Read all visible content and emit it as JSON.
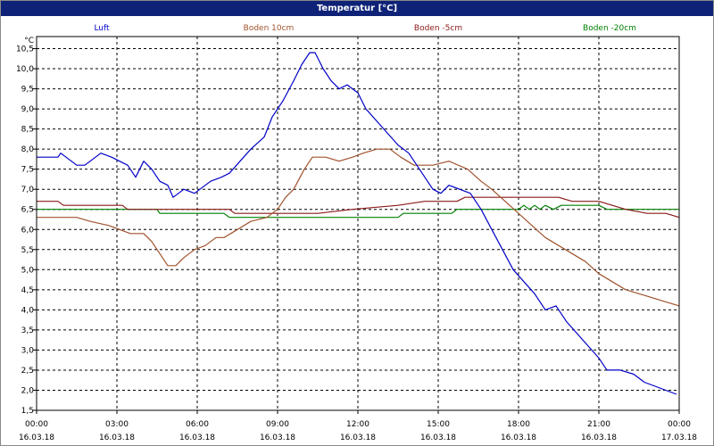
{
  "chart_data": {
    "type": "line",
    "title": "Temperatur [°C]",
    "ylabel": "°C",
    "ylim": [
      1.5,
      10.8
    ],
    "xlim": [
      0,
      24
    ],
    "grid": true,
    "legend_position": "top",
    "x_ticks": [
      {
        "x": 0,
        "time": "00:00",
        "date": "16.03.18"
      },
      {
        "x": 3,
        "time": "03:00",
        "date": "16.03.18"
      },
      {
        "x": 6,
        "time": "06:00",
        "date": "16.03.18"
      },
      {
        "x": 9,
        "time": "09:00",
        "date": "16.03.18"
      },
      {
        "x": 12,
        "time": "12:00",
        "date": "16.03.18"
      },
      {
        "x": 15,
        "time": "15:00",
        "date": "16.03.18"
      },
      {
        "x": 18,
        "time": "18:00",
        "date": "16.03.18"
      },
      {
        "x": 21,
        "time": "21:00",
        "date": "16.03.18"
      },
      {
        "x": 24,
        "time": "00:00",
        "date": "17.03.18"
      }
    ],
    "y_ticks": [
      {
        "v": 10.5,
        "label": "10,5"
      },
      {
        "v": 10.0,
        "label": "10,0"
      },
      {
        "v": 9.5,
        "label": "9,5"
      },
      {
        "v": 9.0,
        "label": "9,0"
      },
      {
        "v": 8.5,
        "label": "8,5"
      },
      {
        "v": 8.0,
        "label": "8,0"
      },
      {
        "v": 7.5,
        "label": "7,5"
      },
      {
        "v": 7.0,
        "label": "7,0"
      },
      {
        "v": 6.5,
        "label": "6,5"
      },
      {
        "v": 6.0,
        "label": "6,0"
      },
      {
        "v": 5.5,
        "label": "5,5"
      },
      {
        "v": 5.0,
        "label": "5,0"
      },
      {
        "v": 4.5,
        "label": "4,5"
      },
      {
        "v": 4.0,
        "label": "4,0"
      },
      {
        "v": 3.5,
        "label": "3,5"
      },
      {
        "v": 3.0,
        "label": "3,0"
      },
      {
        "v": 2.5,
        "label": "2,5"
      },
      {
        "v": 2.0,
        "label": "2,0"
      },
      {
        "v": 1.5,
        "label": "1,5"
      }
    ],
    "series": [
      {
        "name": "Luft",
        "color": "#0000c8",
        "points": [
          [
            0,
            7.8
          ],
          [
            0.8,
            7.8
          ],
          [
            0.9,
            7.9
          ],
          [
            1.1,
            7.8
          ],
          [
            1.5,
            7.6
          ],
          [
            1.8,
            7.6
          ],
          [
            2.2,
            7.8
          ],
          [
            2.4,
            7.9
          ],
          [
            2.8,
            7.8
          ],
          [
            3.1,
            7.7
          ],
          [
            3.4,
            7.6
          ],
          [
            3.7,
            7.3
          ],
          [
            4.0,
            7.7
          ],
          [
            4.3,
            7.5
          ],
          [
            4.6,
            7.2
          ],
          [
            4.9,
            7.1
          ],
          [
            5.1,
            6.8
          ],
          [
            5.5,
            7.0
          ],
          [
            5.9,
            6.9
          ],
          [
            6.1,
            7.0
          ],
          [
            6.5,
            7.2
          ],
          [
            6.9,
            7.3
          ],
          [
            7.2,
            7.4
          ],
          [
            7.6,
            7.7
          ],
          [
            8.0,
            8.0
          ],
          [
            8.5,
            8.3
          ],
          [
            8.8,
            8.8
          ],
          [
            9.2,
            9.2
          ],
          [
            9.6,
            9.7
          ],
          [
            9.9,
            10.1
          ],
          [
            10.2,
            10.4
          ],
          [
            10.4,
            10.4
          ],
          [
            10.7,
            10.0
          ],
          [
            11.0,
            9.7
          ],
          [
            11.3,
            9.5
          ],
          [
            11.6,
            9.6
          ],
          [
            12.0,
            9.4
          ],
          [
            12.3,
            9.0
          ],
          [
            12.7,
            8.7
          ],
          [
            13.1,
            8.4
          ],
          [
            13.5,
            8.1
          ],
          [
            13.9,
            7.9
          ],
          [
            14.2,
            7.6
          ],
          [
            14.5,
            7.3
          ],
          [
            14.8,
            7.0
          ],
          [
            15.1,
            6.9
          ],
          [
            15.4,
            7.1
          ],
          [
            15.8,
            7.0
          ],
          [
            16.2,
            6.9
          ],
          [
            16.6,
            6.5
          ],
          [
            17.0,
            6.0
          ],
          [
            17.4,
            5.5
          ],
          [
            17.8,
            5.0
          ],
          [
            18.2,
            4.7
          ],
          [
            18.6,
            4.4
          ],
          [
            19.0,
            4.0
          ],
          [
            19.4,
            4.1
          ],
          [
            19.8,
            3.7
          ],
          [
            20.2,
            3.4
          ],
          [
            20.6,
            3.1
          ],
          [
            21.0,
            2.8
          ],
          [
            21.3,
            2.5
          ],
          [
            21.8,
            2.5
          ],
          [
            22.3,
            2.4
          ],
          [
            22.7,
            2.2
          ],
          [
            23.1,
            2.1
          ],
          [
            23.5,
            2.0
          ],
          [
            23.9,
            1.9
          ]
        ]
      },
      {
        "name": "Boden 10cm",
        "color": "#a0522d",
        "points": [
          [
            0,
            6.3
          ],
          [
            1.5,
            6.3
          ],
          [
            2.0,
            6.2
          ],
          [
            2.7,
            6.1
          ],
          [
            3.1,
            6.0
          ],
          [
            3.5,
            5.9
          ],
          [
            4.0,
            5.9
          ],
          [
            4.3,
            5.7
          ],
          [
            4.6,
            5.4
          ],
          [
            4.9,
            5.1
          ],
          [
            5.2,
            5.1
          ],
          [
            5.5,
            5.3
          ],
          [
            5.9,
            5.5
          ],
          [
            6.3,
            5.6
          ],
          [
            6.7,
            5.8
          ],
          [
            7.0,
            5.8
          ],
          [
            7.5,
            6.0
          ],
          [
            8.0,
            6.2
          ],
          [
            8.6,
            6.3
          ],
          [
            9.0,
            6.5
          ],
          [
            9.3,
            6.8
          ],
          [
            9.6,
            7.0
          ],
          [
            10.0,
            7.5
          ],
          [
            10.3,
            7.8
          ],
          [
            10.8,
            7.8
          ],
          [
            11.3,
            7.7
          ],
          [
            11.8,
            7.8
          ],
          [
            12.2,
            7.9
          ],
          [
            12.7,
            8.0
          ],
          [
            13.2,
            8.0
          ],
          [
            13.6,
            7.8
          ],
          [
            14.1,
            7.6
          ],
          [
            14.8,
            7.6
          ],
          [
            15.4,
            7.7
          ],
          [
            16.1,
            7.5
          ],
          [
            16.6,
            7.2
          ],
          [
            17.0,
            7.0
          ],
          [
            17.5,
            6.7
          ],
          [
            18.0,
            6.4
          ],
          [
            18.5,
            6.1
          ],
          [
            19.0,
            5.8
          ],
          [
            19.5,
            5.6
          ],
          [
            20.0,
            5.4
          ],
          [
            20.5,
            5.2
          ],
          [
            21.0,
            4.9
          ],
          [
            21.5,
            4.7
          ],
          [
            22.0,
            4.5
          ],
          [
            22.5,
            4.4
          ],
          [
            23.0,
            4.3
          ],
          [
            23.5,
            4.2
          ],
          [
            24.0,
            4.1
          ]
        ]
      },
      {
        "name": "Boden -5cm",
        "color": "#8b1a1a",
        "points": [
          [
            0,
            6.7
          ],
          [
            0.8,
            6.7
          ],
          [
            1.0,
            6.6
          ],
          [
            3.2,
            6.6
          ],
          [
            3.4,
            6.5
          ],
          [
            7.2,
            6.5
          ],
          [
            7.4,
            6.4
          ],
          [
            10.2,
            6.4
          ],
          [
            10.5,
            6.4
          ],
          [
            11.8,
            6.5
          ],
          [
            13.5,
            6.6
          ],
          [
            14.5,
            6.7
          ],
          [
            15.7,
            6.7
          ],
          [
            16.0,
            6.8
          ],
          [
            19.5,
            6.8
          ],
          [
            20.0,
            6.7
          ],
          [
            21.0,
            6.7
          ],
          [
            21.5,
            6.6
          ],
          [
            22.0,
            6.5
          ],
          [
            22.8,
            6.4
          ],
          [
            23.5,
            6.4
          ],
          [
            24.0,
            6.3
          ]
        ]
      },
      {
        "name": "Boden -20cm",
        "color": "#008000",
        "points": [
          [
            0,
            6.5
          ],
          [
            4.5,
            6.5
          ],
          [
            4.6,
            6.4
          ],
          [
            7.0,
            6.4
          ],
          [
            7.2,
            6.3
          ],
          [
            13.5,
            6.3
          ],
          [
            13.7,
            6.4
          ],
          [
            15.5,
            6.4
          ],
          [
            15.7,
            6.5
          ],
          [
            18.0,
            6.5
          ],
          [
            18.2,
            6.6
          ],
          [
            18.4,
            6.5
          ],
          [
            18.6,
            6.6
          ],
          [
            18.8,
            6.5
          ],
          [
            19.0,
            6.6
          ],
          [
            19.3,
            6.5
          ],
          [
            19.6,
            6.6
          ],
          [
            21.0,
            6.6
          ],
          [
            21.3,
            6.5
          ],
          [
            24.0,
            6.5
          ]
        ]
      }
    ]
  }
}
